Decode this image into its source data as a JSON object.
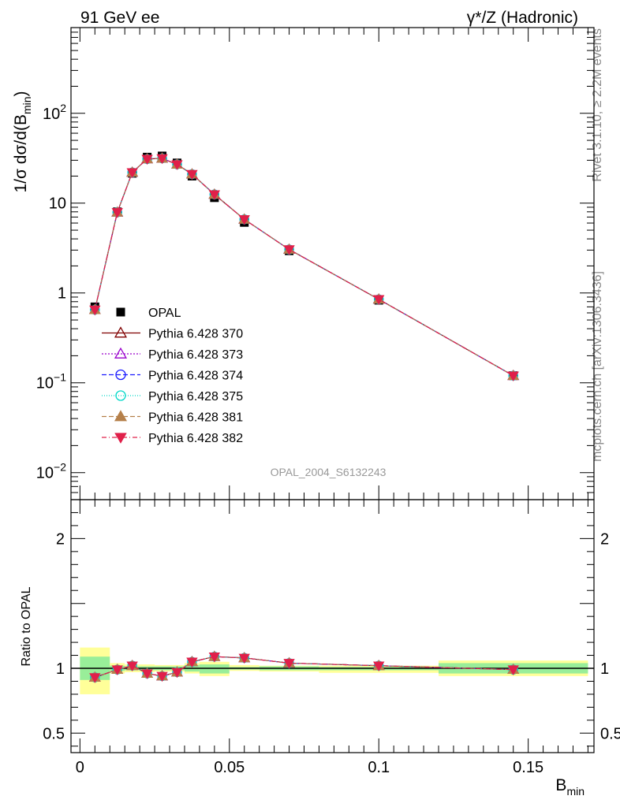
{
  "header": {
    "left": "91 GeV ee",
    "right": "γ*/Z (Hadronic)"
  },
  "side_labels": {
    "rivet": "Rivet 3.1.10, ≥ 2.2M events",
    "mcplots": "mcplots.cern.ch [arXiv:1306.3436]"
  },
  "analysis_id": "OPAL_2004_S6132243",
  "chart_data": [
    {
      "type": "line",
      "panel": "main",
      "ylabel": "1/σ dσ/d(B_min)",
      "yscale": "log",
      "ylim": [
        0.005,
        900
      ],
      "xlim": [
        -0.003,
        0.172
      ],
      "yticks": [
        {
          "v": 0.01,
          "label": "10",
          "sup": "−2"
        },
        {
          "v": 0.1,
          "label": "10",
          "sup": "−1"
        },
        {
          "v": 1,
          "label": "1",
          "sup": ""
        },
        {
          "v": 10,
          "label": "10",
          "sup": ""
        },
        {
          "v": 100,
          "label": "10",
          "sup": "2"
        }
      ],
      "x": [
        0.005,
        0.0125,
        0.0175,
        0.0225,
        0.0275,
        0.0325,
        0.0375,
        0.045,
        0.055,
        0.07,
        0.1,
        0.145
      ],
      "series": [
        {
          "name": "OPAL",
          "style": "data",
          "color": "#000000",
          "marker": "square",
          "values": [
            0.7,
            8.0,
            21.5,
            32.5,
            33.5,
            28.0,
            20.0,
            11.5,
            6.1,
            2.95,
            0.83,
            0.12
          ]
        },
        {
          "name": "Pythia 6.428 370",
          "color": "#800000",
          "dash": "",
          "marker": "triangle-open",
          "values": [
            0.65,
            7.9,
            22.0,
            31.0,
            31.5,
            27.0,
            21.0,
            12.5,
            6.6,
            3.05,
            0.85,
            0.12
          ]
        },
        {
          "name": "Pythia 6.428 373",
          "color": "#9900cc",
          "dash": "2,2",
          "marker": "triangle-open",
          "values": [
            0.65,
            7.9,
            22.0,
            31.0,
            31.5,
            27.0,
            21.0,
            12.5,
            6.6,
            3.05,
            0.85,
            0.12
          ]
        },
        {
          "name": "Pythia 6.428 374",
          "color": "#1a1aff",
          "dash": "6,3",
          "marker": "circle-open",
          "values": [
            0.65,
            7.9,
            22.0,
            31.0,
            31.5,
            27.0,
            21.0,
            12.5,
            6.6,
            3.05,
            0.85,
            0.12
          ]
        },
        {
          "name": "Pythia 6.428 375",
          "color": "#00d8c8",
          "dash": "1,2",
          "marker": "circle-open",
          "values": [
            0.65,
            7.9,
            22.0,
            31.0,
            31.5,
            27.0,
            21.0,
            12.5,
            6.6,
            3.05,
            0.85,
            0.12
          ]
        },
        {
          "name": "Pythia 6.428 381",
          "color": "#b5804a",
          "dash": "6,3",
          "marker": "triangle-filled",
          "values": [
            0.65,
            7.9,
            22.0,
            31.0,
            31.5,
            27.0,
            21.0,
            12.5,
            6.6,
            3.05,
            0.85,
            0.12
          ]
        },
        {
          "name": "Pythia 6.428 382",
          "color": "#e0204a",
          "dash": "6,3,1,3",
          "marker": "triangle-down-filled",
          "values": [
            0.65,
            7.9,
            22.0,
            31.0,
            31.5,
            27.0,
            21.0,
            12.5,
            6.6,
            3.05,
            0.85,
            0.12
          ]
        }
      ],
      "legend": "lower-left"
    },
    {
      "type": "line",
      "panel": "ratio",
      "ylabel": "Ratio to OPAL",
      "xlabel": "B_min",
      "ylim": [
        0.35,
        2.3
      ],
      "xlim": [
        -0.003,
        0.172
      ],
      "yticks": [
        {
          "v": 0.5,
          "label": "0.5"
        },
        {
          "v": 1,
          "label": "1"
        },
        {
          "v": 2,
          "label": "2"
        }
      ],
      "xticks": [
        {
          "v": 0,
          "label": "0"
        },
        {
          "v": 0.05,
          "label": "0.05"
        },
        {
          "v": 0.1,
          "label": "0.1"
        },
        {
          "v": 0.15,
          "label": "0.15"
        }
      ],
      "bins": [
        {
          "lo": 0.0,
          "hi": 0.01,
          "stat": [
            0.91,
            1.09
          ],
          "total": [
            0.8,
            1.16
          ]
        },
        {
          "lo": 0.01,
          "hi": 0.015,
          "stat": [
            0.98,
            1.02
          ],
          "total": [
            0.96,
            1.04
          ]
        },
        {
          "lo": 0.015,
          "hi": 0.02,
          "stat": [
            0.985,
            1.015
          ],
          "total": [
            0.97,
            1.03
          ]
        },
        {
          "lo": 0.02,
          "hi": 0.025,
          "stat": [
            0.985,
            1.015
          ],
          "total": [
            0.97,
            1.03
          ]
        },
        {
          "lo": 0.025,
          "hi": 0.03,
          "stat": [
            0.985,
            1.015
          ],
          "total": [
            0.975,
            1.025
          ]
        },
        {
          "lo": 0.03,
          "hi": 0.035,
          "stat": [
            0.985,
            1.015
          ],
          "total": [
            0.975,
            1.025
          ]
        },
        {
          "lo": 0.035,
          "hi": 0.04,
          "stat": [
            0.975,
            1.025
          ],
          "total": [
            0.96,
            1.04
          ]
        },
        {
          "lo": 0.04,
          "hi": 0.05,
          "stat": [
            0.96,
            1.03
          ],
          "total": [
            0.94,
            1.05
          ]
        },
        {
          "lo": 0.05,
          "hi": 0.06,
          "stat": [
            0.99,
            1.01
          ],
          "total": [
            0.98,
            1.025
          ]
        },
        {
          "lo": 0.06,
          "hi": 0.08,
          "stat": [
            0.985,
            1.015
          ],
          "total": [
            0.975,
            1.02
          ]
        },
        {
          "lo": 0.08,
          "hi": 0.12,
          "stat": [
            0.985,
            1.01
          ],
          "total": [
            0.965,
            1.02
          ]
        },
        {
          "lo": 0.12,
          "hi": 0.17,
          "stat": [
            0.96,
            1.04
          ],
          "total": [
            0.94,
            1.06
          ]
        }
      ],
      "x": [
        0.005,
        0.0125,
        0.0175,
        0.0225,
        0.0275,
        0.0325,
        0.0375,
        0.045,
        0.055,
        0.07,
        0.1,
        0.145
      ],
      "ratio_values": [
        0.93,
        0.99,
        1.02,
        0.96,
        0.94,
        0.97,
        1.05,
        1.09,
        1.08,
        1.04,
        1.02,
        0.99
      ],
      "data_points": [
        1,
        1,
        1,
        1,
        1,
        1,
        1,
        1,
        1,
        1,
        1,
        1
      ]
    }
  ]
}
